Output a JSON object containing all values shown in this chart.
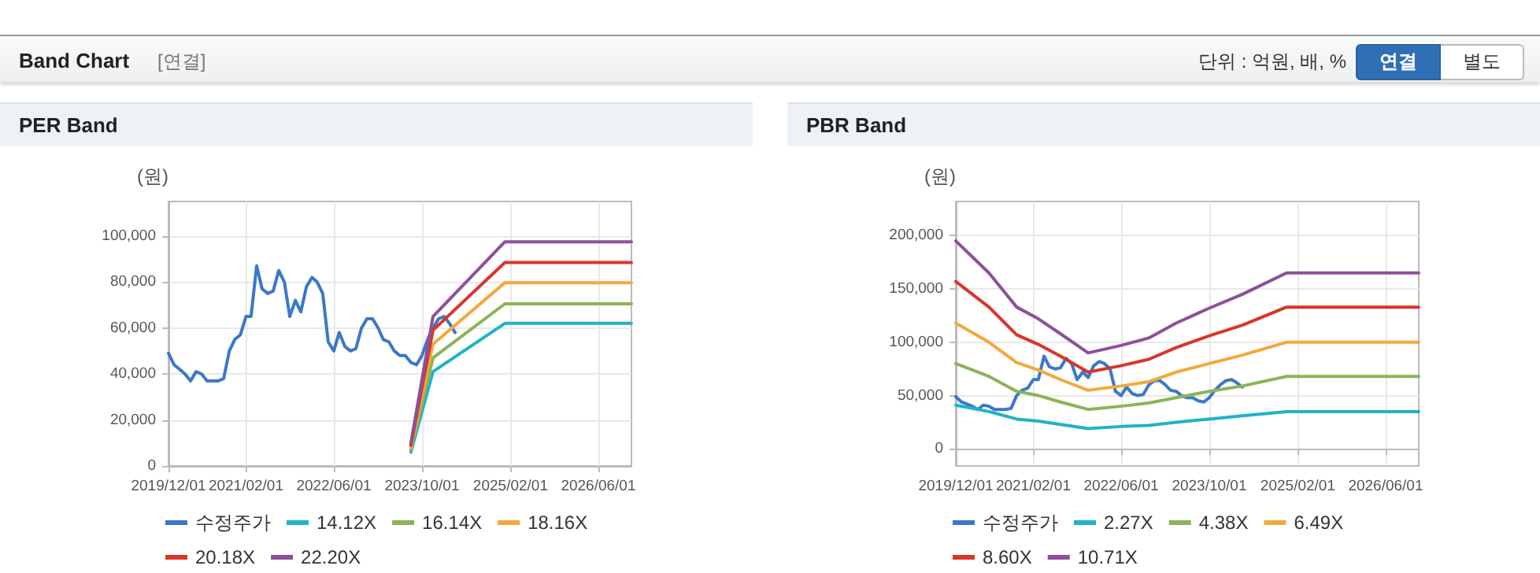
{
  "chart_data": [
    {
      "type": "other",
      "title": "Band Chart",
      "annotations": [
        "[연결]",
        "단위 : 억원, 배, %",
        "연결",
        "별도"
      ]
    },
    {
      "type": "line",
      "title": "PER Band",
      "ylabel": "(원)",
      "xlim": [
        "2019-12-01",
        "2026-12-01"
      ],
      "ylim": [
        0,
        115000
      ],
      "xticks": [
        {
          "value": "2019-12-01",
          "label": "2019/12/01"
        },
        {
          "value": "2021-02-01",
          "label": "2021/02/01"
        },
        {
          "value": "2022-06-01",
          "label": "2022/06/01"
        },
        {
          "value": "2023-10-01",
          "label": "2023/10/01"
        },
        {
          "value": "2025-02-01",
          "label": "2025/02/01"
        },
        {
          "value": "2026-06-01",
          "label": "2026/06/01"
        }
      ],
      "yticks": [
        0,
        {
          "value": 20000,
          "label": "20,000"
        },
        {
          "value": 40000,
          "label": "40,000"
        },
        {
          "value": 60000,
          "label": "60,000"
        },
        {
          "value": 80000,
          "label": "80,000"
        },
        {
          "value": 100000,
          "label": "100,000"
        }
      ],
      "grid": true,
      "legend": "bottom",
      "marker": "none",
      "series": [
        {
          "name": "수정주가",
          "color": "#3a78c9",
          "x": [
            "2019-12",
            "2020-01",
            "2020-02",
            "2020-03",
            "2020-04",
            "2020-05",
            "2020-06",
            "2020-07",
            "2020-08",
            "2020-09",
            "2020-10",
            "2020-11",
            "2020-12",
            "2021-01",
            "2021-02",
            "2021-03",
            "2021-04",
            "2021-05",
            "2021-06",
            "2021-07",
            "2021-08",
            "2021-09",
            "2021-10",
            "2021-11",
            "2021-12",
            "2022-01",
            "2022-02",
            "2022-03",
            "2022-04",
            "2022-05",
            "2022-06",
            "2022-07",
            "2022-08",
            "2022-09",
            "2022-10",
            "2022-11",
            "2022-12",
            "2023-01",
            "2023-02",
            "2023-03",
            "2023-04",
            "2023-05",
            "2023-06",
            "2023-07",
            "2023-08",
            "2023-09",
            "2023-10",
            "2023-11",
            "2023-12",
            "2024-01",
            "2024-02",
            "2024-03",
            "2024-04"
          ],
          "values": [
            49000,
            44000,
            42000,
            40000,
            37000,
            41000,
            40000,
            37000,
            37000,
            37000,
            38000,
            50000,
            55000,
            57000,
            65000,
            65000,
            87000,
            77000,
            75000,
            76000,
            85000,
            80000,
            65000,
            72000,
            67000,
            78000,
            82000,
            80000,
            75000,
            54000,
            50000,
            58000,
            52000,
            50000,
            51000,
            60000,
            64000,
            64000,
            60000,
            55000,
            54000,
            50000,
            48000,
            48000,
            45000,
            44000,
            48000,
            55000,
            60000,
            64000,
            65000,
            62000,
            58000
          ]
        },
        {
          "name": "14.12X",
          "color": "#1fb3c6",
          "x": [
            "2023-08",
            "2023-12",
            "2025-01",
            "2026-12"
          ],
          "values": [
            6000,
            41000,
            62000,
            62000
          ]
        },
        {
          "name": "16.14X",
          "color": "#8db356",
          "x": [
            "2023-08",
            "2023-12",
            "2025-01",
            "2026-12"
          ],
          "values": [
            7000,
            47000,
            70500,
            70500
          ]
        },
        {
          "name": "18.16X",
          "color": "#f2a93b",
          "x": [
            "2023-08",
            "2023-12",
            "2025-01",
            "2026-12"
          ],
          "values": [
            8000,
            53000,
            79700,
            79700
          ]
        },
        {
          "name": "20.18X",
          "color": "#d9352a",
          "x": [
            "2023-08",
            "2023-12",
            "2025-01",
            "2026-12"
          ],
          "values": [
            9000,
            59000,
            88500,
            88500
          ]
        },
        {
          "name": "22.20X",
          "color": "#8e4f9c",
          "x": [
            "2023-08",
            "2023-12",
            "2025-01",
            "2026-12"
          ],
          "values": [
            10000,
            65000,
            97500,
            97500
          ]
        }
      ]
    },
    {
      "type": "line",
      "title": "PBR Band",
      "ylabel": "(원)",
      "xlim": [
        "2019-12-01",
        "2026-12-01"
      ],
      "ylim": [
        -16000,
        232000
      ],
      "xticks": [
        {
          "value": "2019-12-01",
          "label": "2019/12/01"
        },
        {
          "value": "2021-02-01",
          "label": "2021/02/01"
        },
        {
          "value": "2022-06-01",
          "label": "2022/06/01"
        },
        {
          "value": "2023-10-01",
          "label": "2023/10/01"
        },
        {
          "value": "2025-02-01",
          "label": "2025/02/01"
        },
        {
          "value": "2026-06-01",
          "label": "2026/06/01"
        }
      ],
      "yticks": [
        0,
        {
          "value": 50000,
          "label": "50,000"
        },
        {
          "value": 100000,
          "label": "100,000"
        },
        {
          "value": 150000,
          "label": "150,000"
        },
        {
          "value": 200000,
          "label": "200,000"
        }
      ],
      "grid": true,
      "legend": "bottom",
      "marker": "none",
      "series": [
        {
          "name": "수정주가",
          "color": "#3a78c9",
          "x": [
            "2019-12",
            "2020-01",
            "2020-02",
            "2020-03",
            "2020-04",
            "2020-05",
            "2020-06",
            "2020-07",
            "2020-08",
            "2020-09",
            "2020-10",
            "2020-11",
            "2020-12",
            "2021-01",
            "2021-02",
            "2021-03",
            "2021-04",
            "2021-05",
            "2021-06",
            "2021-07",
            "2021-08",
            "2021-09",
            "2021-10",
            "2021-11",
            "2021-12",
            "2022-01",
            "2022-02",
            "2022-03",
            "2022-04",
            "2022-05",
            "2022-06",
            "2022-07",
            "2022-08",
            "2022-09",
            "2022-10",
            "2022-11",
            "2022-12",
            "2023-01",
            "2023-02",
            "2023-03",
            "2023-04",
            "2023-05",
            "2023-06",
            "2023-07",
            "2023-08",
            "2023-09",
            "2023-10",
            "2023-11",
            "2023-12",
            "2024-01",
            "2024-02",
            "2024-03",
            "2024-04"
          ],
          "values": [
            49000,
            44000,
            42000,
            40000,
            37000,
            41000,
            40000,
            37000,
            37000,
            37000,
            38000,
            50000,
            55000,
            57000,
            65000,
            65000,
            87000,
            77000,
            75000,
            76000,
            85000,
            80000,
            65000,
            72000,
            67000,
            78000,
            82000,
            80000,
            75000,
            54000,
            50000,
            58000,
            52000,
            50000,
            51000,
            60000,
            64000,
            64000,
            60000,
            55000,
            54000,
            50000,
            48000,
            48000,
            45000,
            44000,
            48000,
            55000,
            60000,
            64000,
            65000,
            62000,
            58000
          ]
        },
        {
          "name": "2.27X",
          "color": "#1fb3c6",
          "x": [
            "2019-12",
            "2020-06",
            "2020-11",
            "2021-03",
            "2021-07",
            "2021-12",
            "2022-06",
            "2022-11",
            "2023-04",
            "2023-10",
            "2024-04",
            "2024-12",
            "2026-12"
          ],
          "values": [
            41000,
            35000,
            28000,
            26000,
            23000,
            19000,
            21000,
            22000,
            25000,
            28000,
            31000,
            35000,
            35000
          ]
        },
        {
          "name": "4.38X",
          "color": "#8db356",
          "x": [
            "2019-12",
            "2020-06",
            "2020-11",
            "2021-03",
            "2021-07",
            "2021-12",
            "2022-06",
            "2022-11",
            "2023-04",
            "2023-10",
            "2024-04",
            "2024-12",
            "2026-12"
          ],
          "values": [
            80000,
            68000,
            54000,
            50000,
            44000,
            37000,
            40000,
            43000,
            48000,
            54000,
            59000,
            68000,
            68000
          ]
        },
        {
          "name": "6.49X",
          "color": "#f2a93b",
          "x": [
            "2019-12",
            "2020-06",
            "2020-11",
            "2021-03",
            "2021-07",
            "2021-12",
            "2022-06",
            "2022-11",
            "2023-04",
            "2023-10",
            "2024-04",
            "2024-12",
            "2026-12"
          ],
          "values": [
            118000,
            100000,
            81000,
            74000,
            65000,
            55000,
            59000,
            63000,
            72000,
            80000,
            88000,
            100000,
            100000
          ]
        },
        {
          "name": "8.60X",
          "color": "#d9352a",
          "x": [
            "2019-12",
            "2020-06",
            "2020-11",
            "2021-03",
            "2021-07",
            "2021-12",
            "2022-06",
            "2022-11",
            "2023-04",
            "2023-10",
            "2024-04",
            "2024-12",
            "2026-12"
          ],
          "values": [
            157000,
            133000,
            107000,
            98000,
            87000,
            72000,
            78000,
            84000,
            95000,
            106000,
            116000,
            133000,
            133000
          ]
        },
        {
          "name": "10.71X",
          "color": "#8e4f9c",
          "x": [
            "2019-12",
            "2020-06",
            "2020-11",
            "2021-03",
            "2021-07",
            "2021-12",
            "2022-06",
            "2022-11",
            "2023-04",
            "2023-10",
            "2024-04",
            "2024-12",
            "2026-12"
          ],
          "values": [
            195000,
            165000,
            133000,
            122000,
            108000,
            90000,
            97000,
            104000,
            118000,
            132000,
            145000,
            165000,
            165000
          ]
        }
      ]
    }
  ]
}
